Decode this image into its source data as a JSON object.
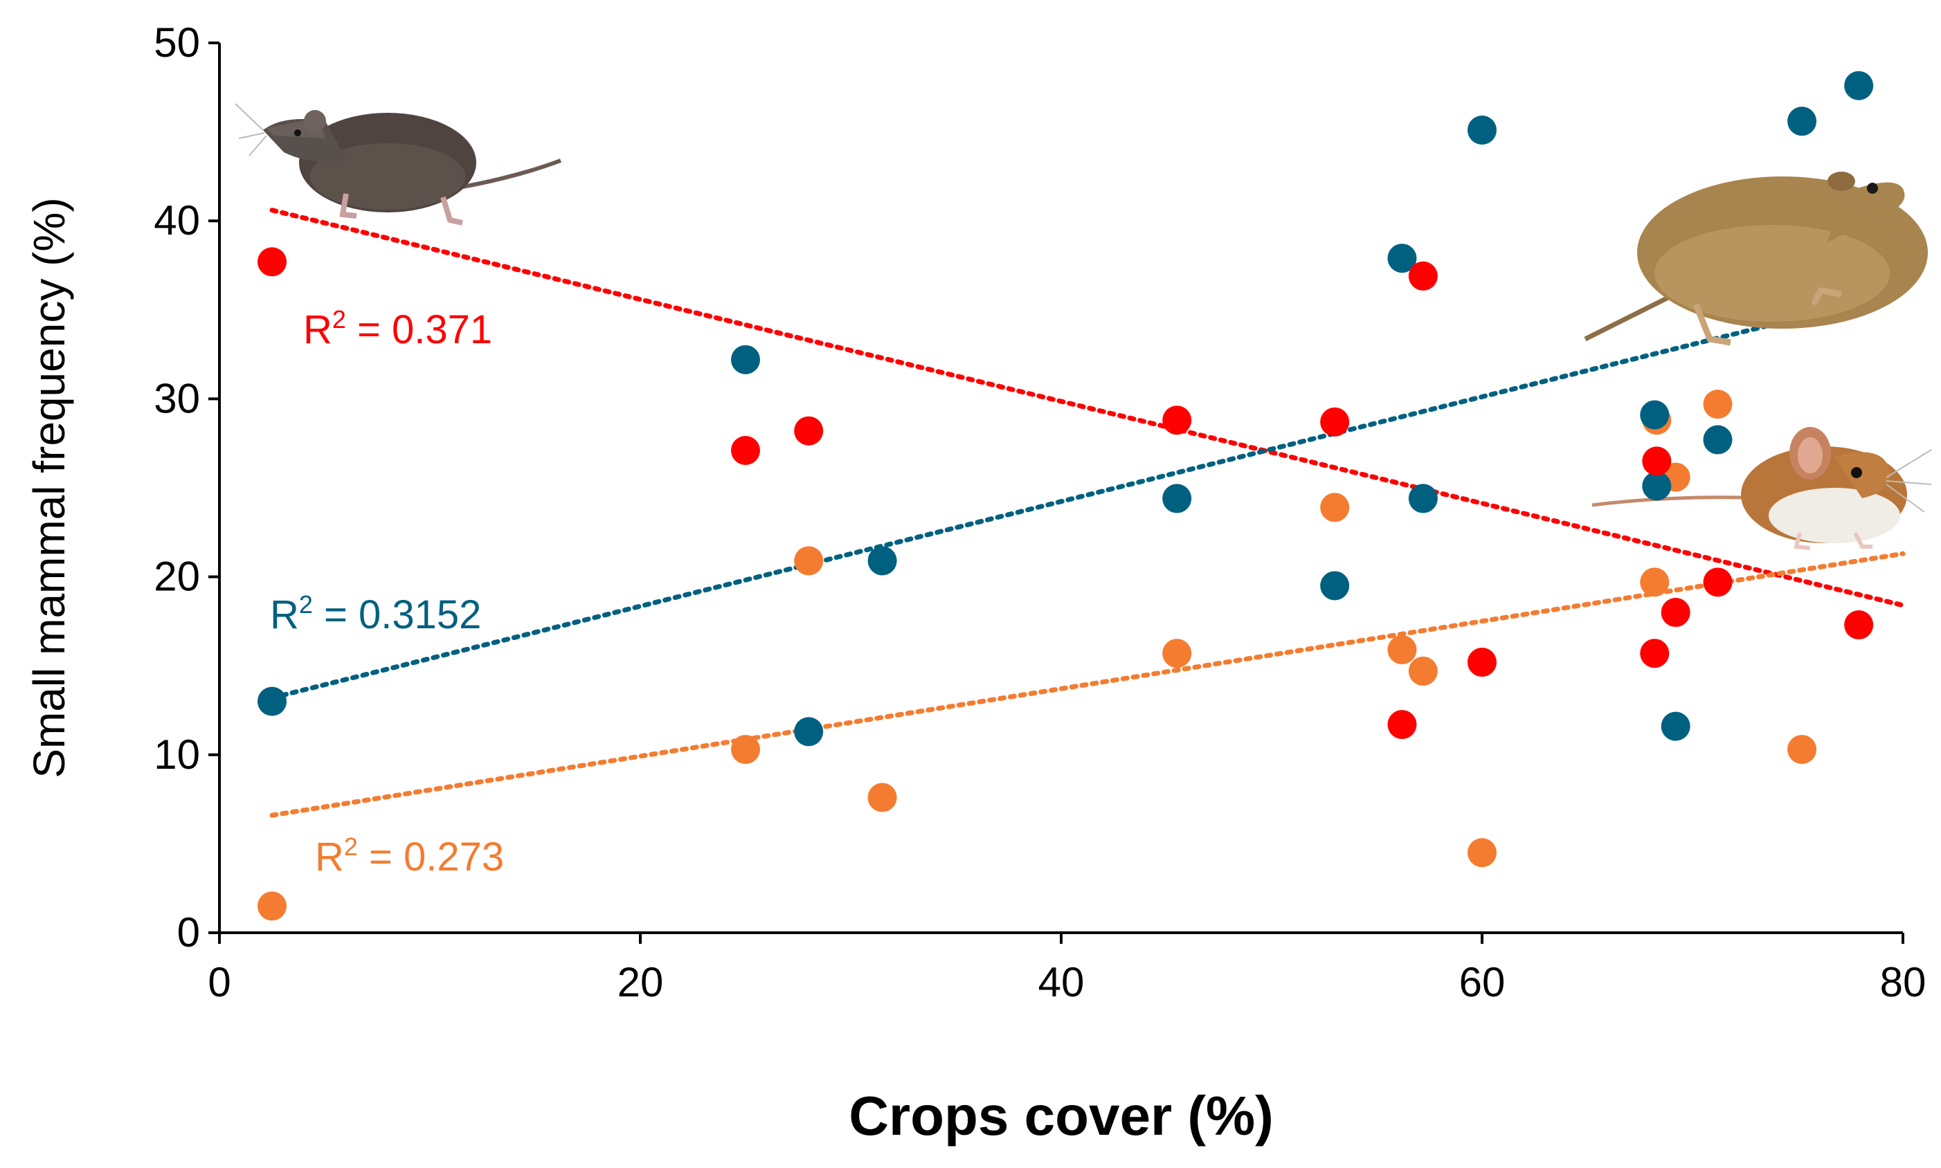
{
  "chart_data": {
    "type": "scatter",
    "title": "",
    "xlabel": "Crops cover (%)",
    "ylabel": "Small mammal frequency (%)",
    "xlim": [
      0,
      80
    ],
    "ylim": [
      0,
      50
    ],
    "x_ticks": [
      "0",
      "20",
      "40",
      "60",
      "80"
    ],
    "y_ticks": [
      "0",
      "10",
      "20",
      "30",
      "40",
      "50"
    ],
    "grid": false,
    "series": [
      {
        "name": "Shrew",
        "color": "#ff0000",
        "r2_label": "R",
        "r2_sup": "2",
        "r2_value": " = 0.371",
        "trend": {
          "x": [
            2.5,
            80
          ],
          "y": [
            40.6,
            18.4
          ]
        },
        "points": [
          [
            2.5,
            37.7
          ],
          [
            25,
            27.1
          ],
          [
            28,
            28.2
          ],
          [
            45.5,
            28.8
          ],
          [
            53,
            28.7
          ],
          [
            56.2,
            11.7
          ],
          [
            57.2,
            36.9
          ],
          [
            60,
            15.2
          ],
          [
            68.2,
            15.7
          ],
          [
            68.3,
            26.5
          ],
          [
            69.2,
            18.0
          ],
          [
            71.2,
            19.7
          ],
          [
            77.9,
            17.3
          ]
        ]
      },
      {
        "name": "Vole",
        "color": "#006080",
        "r2_label": "R",
        "r2_sup": "2",
        "r2_value": " = 0.3152",
        "trend": {
          "x": [
            2.5,
            80
          ],
          "y": [
            13.2,
            36.0
          ]
        },
        "points": [
          [
            2.5,
            13.0
          ],
          [
            25,
            32.2
          ],
          [
            28,
            11.3
          ],
          [
            31.5,
            20.9
          ],
          [
            45.5,
            24.4
          ],
          [
            53,
            19.5
          ],
          [
            56.2,
            37.9
          ],
          [
            57.2,
            24.4
          ],
          [
            60,
            45.1
          ],
          [
            68.2,
            29.1
          ],
          [
            68.3,
            25.1
          ],
          [
            69.2,
            11.6
          ],
          [
            71.2,
            27.7
          ],
          [
            75.2,
            45.6
          ],
          [
            77.9,
            47.6
          ]
        ]
      },
      {
        "name": "Mouse",
        "color": "#f47c30",
        "r2_label": "R",
        "r2_sup": "2",
        "r2_value": " = 0.273",
        "trend": {
          "x": [
            2.5,
            80
          ],
          "y": [
            6.6,
            21.3
          ]
        },
        "points": [
          [
            2.5,
            1.5
          ],
          [
            25,
            10.3
          ],
          [
            28,
            20.9
          ],
          [
            31.5,
            7.6
          ],
          [
            45.5,
            15.7
          ],
          [
            53,
            23.9
          ],
          [
            56.2,
            15.9
          ],
          [
            57.2,
            14.7
          ],
          [
            60,
            4.5
          ],
          [
            68.2,
            19.7
          ],
          [
            68.3,
            28.8
          ],
          [
            69.2,
            25.6
          ],
          [
            71.2,
            29.7
          ],
          [
            75.2,
            10.3
          ]
        ]
      }
    ],
    "illustrations": [
      "shrew-illustration",
      "vole-illustration",
      "mouse-illustration"
    ]
  }
}
